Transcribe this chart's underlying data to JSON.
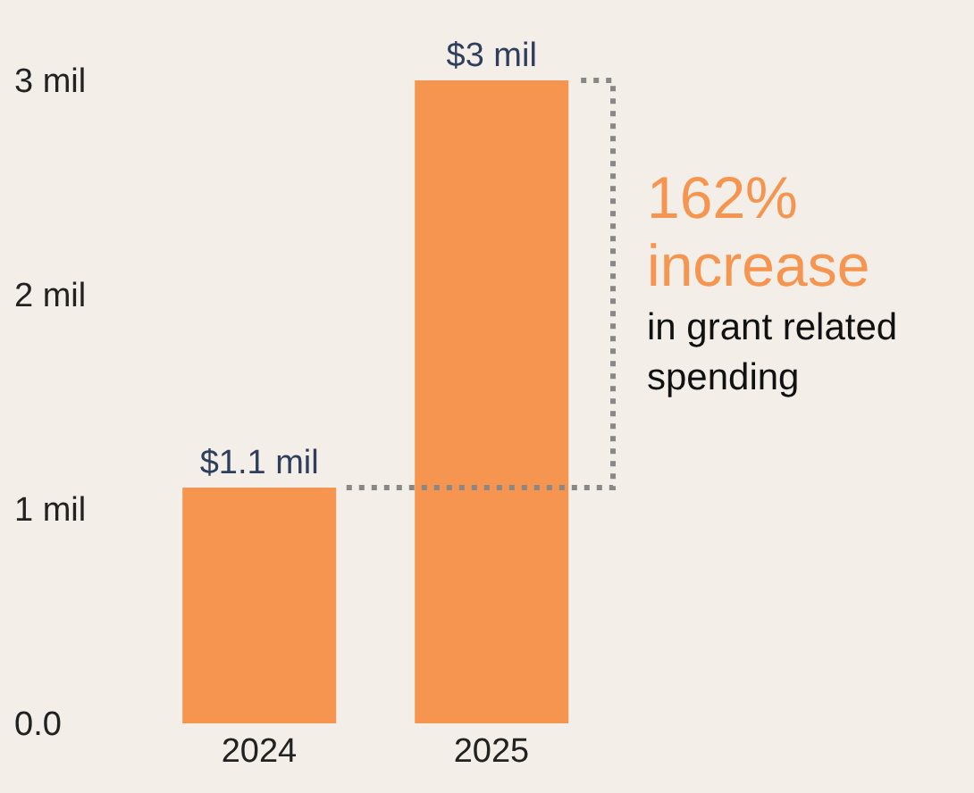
{
  "chart_data": {
    "type": "bar",
    "categories": [
      "2024",
      "2025"
    ],
    "values": [
      1.1,
      3
    ],
    "value_labels": [
      "$1.1 mil",
      "$3 mil"
    ],
    "color": "#f5954f",
    "ylim": [
      0,
      3
    ],
    "yticks": [
      {
        "value": 0,
        "label": "0.0"
      },
      {
        "value": 1,
        "label": "1 mil"
      },
      {
        "value": 2,
        "label": "2 mil"
      },
      {
        "value": 3,
        "label": "3 mil"
      }
    ],
    "grid": false,
    "legend": false,
    "annotations": [
      "162% increase",
      "in grant related spending"
    ]
  }
}
